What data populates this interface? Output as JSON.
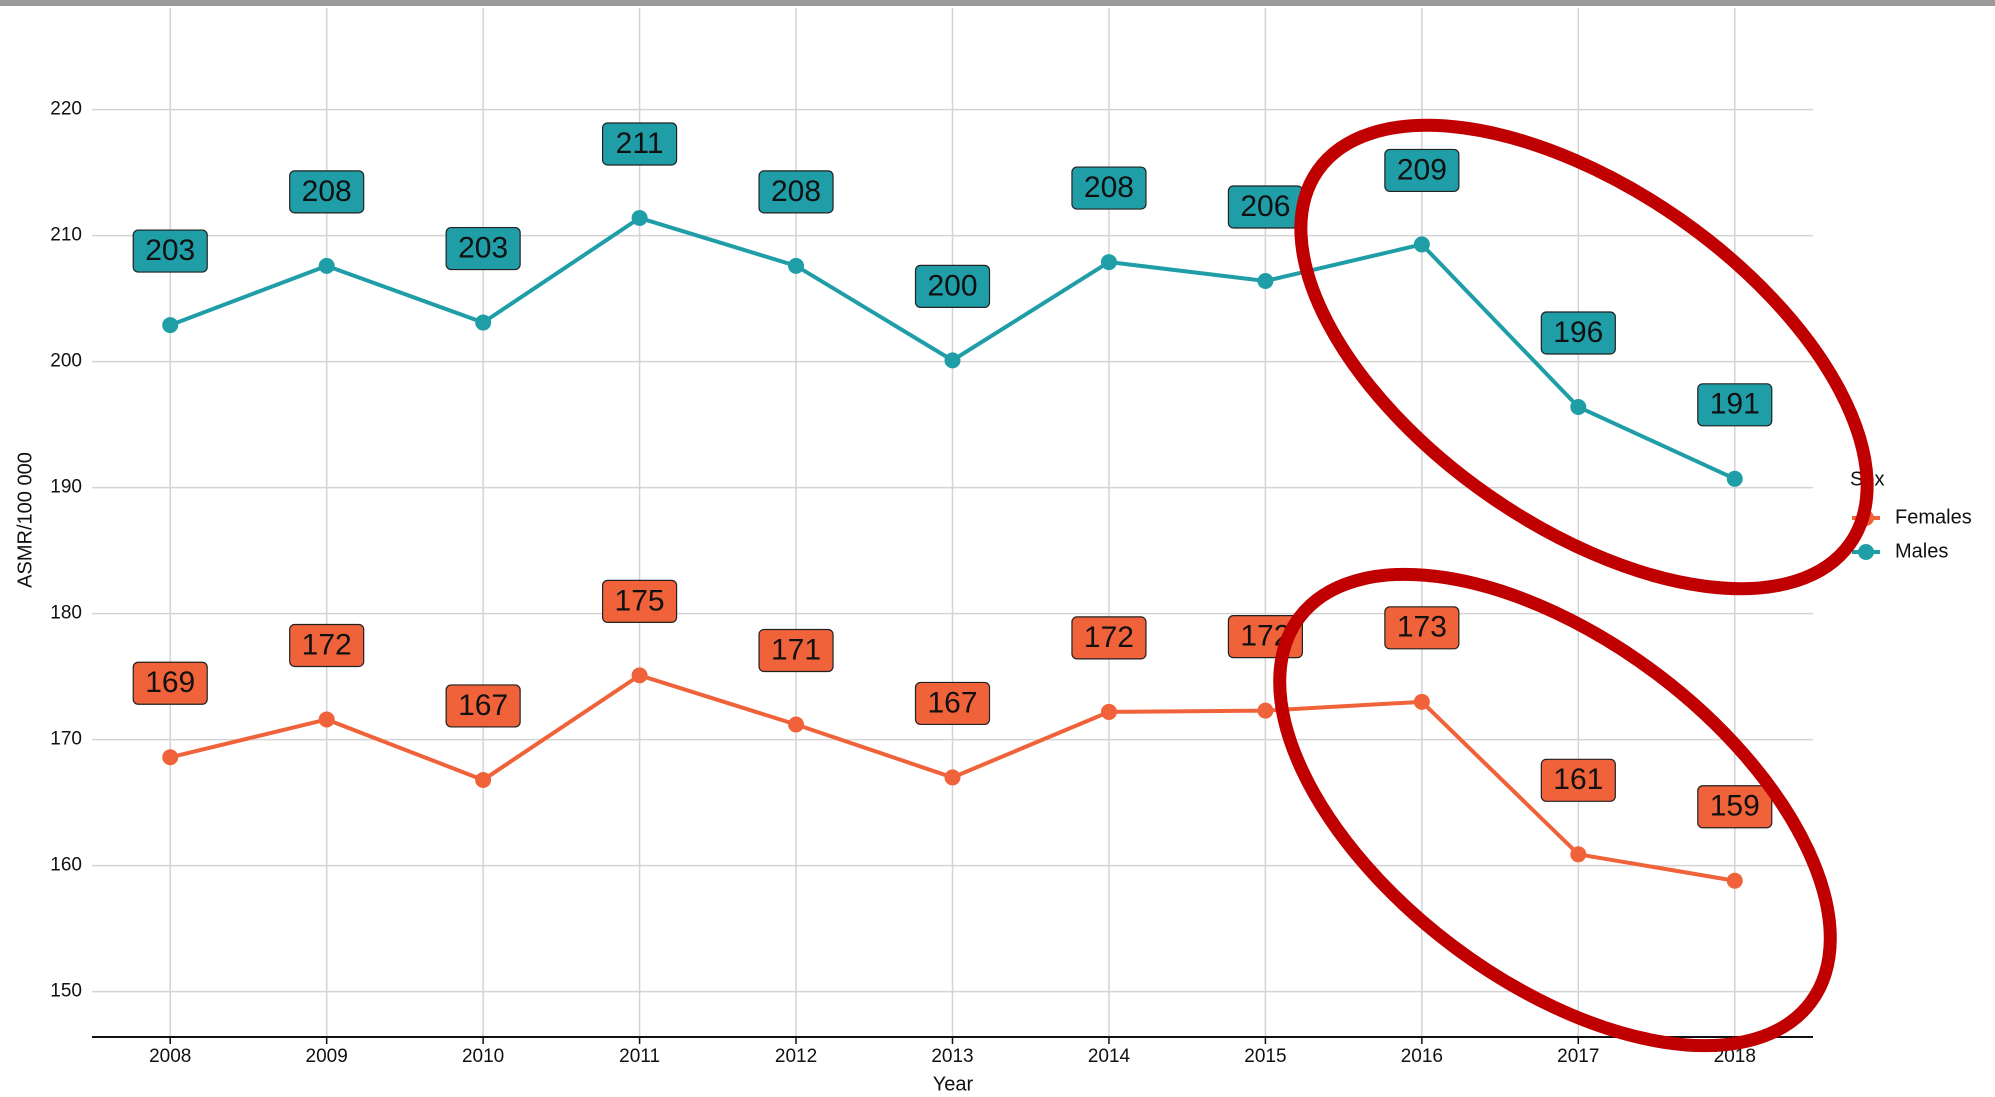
{
  "chart_data": {
    "type": "line",
    "x_label": "Year",
    "y_label": "ASMR/100 000",
    "legend_title": "Sex",
    "grid": true,
    "x": [
      2008,
      2009,
      2010,
      2011,
      2012,
      2013,
      2014,
      2015,
      2016,
      2017,
      2018
    ],
    "xlim": [
      2007.5,
      2018.5
    ],
    "xticks": [
      2008,
      2009,
      2010,
      2011,
      2012,
      2013,
      2014,
      2015,
      2016,
      2017,
      2018
    ],
    "ylim": [
      146.4,
      226
    ],
    "yticks": [
      150,
      160,
      170,
      180,
      190,
      200,
      210,
      220
    ],
    "series": [
      {
        "name": "Females",
        "color": "#f0623a",
        "values": [
          168.6,
          171.6,
          166.8,
          175.1,
          171.2,
          167.0,
          172.2,
          172.3,
          173.0,
          160.9,
          158.8
        ],
        "value_labels": [
          "169",
          "172",
          "167",
          "175",
          "171",
          "167",
          "172",
          "172",
          "173",
          "161",
          "159"
        ]
      },
      {
        "name": "Males",
        "color": "#1f9ea8",
        "values": [
          202.9,
          207.6,
          203.1,
          211.4,
          207.6,
          200.1,
          207.9,
          206.4,
          209.3,
          196.4,
          190.7
        ],
        "value_labels": [
          "203",
          "208",
          "203",
          "211",
          "208",
          "200",
          "208",
          "206",
          "209",
          "196",
          "191"
        ]
      }
    ]
  }
}
